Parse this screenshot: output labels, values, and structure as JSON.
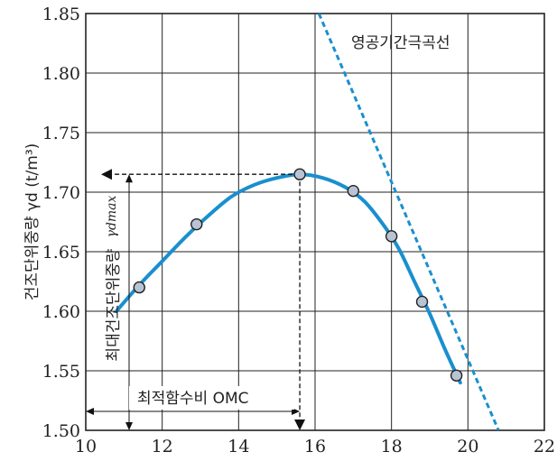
{
  "chart_data": {
    "type": "line",
    "x_ticks": [
      "10",
      "12",
      "14",
      "16",
      "18",
      "20",
      "22"
    ],
    "y_ticks": [
      "1.50",
      "1.55",
      "1.60",
      "1.65",
      "1.70",
      "1.75",
      "1.80",
      "1.85"
    ],
    "xlim": [
      10,
      22
    ],
    "ylim": [
      1.5,
      1.85
    ],
    "grid": true,
    "ylabel": "건조단위중량 γd (t/m³)",
    "series": [
      {
        "kind": "measured-points",
        "color": "#b8c3d4",
        "points": [
          {
            "x": 11.4,
            "y": 1.62
          },
          {
            "x": 12.9,
            "y": 1.673
          },
          {
            "x": 15.6,
            "y": 1.715
          },
          {
            "x": 17.0,
            "y": 1.701
          },
          {
            "x": 18.0,
            "y": 1.663
          },
          {
            "x": 18.8,
            "y": 1.608
          },
          {
            "x": 19.7,
            "y": 1.546
          }
        ]
      },
      {
        "kind": "compaction-curve",
        "color": "#1a8fce",
        "points": [
          {
            "x": 10.8,
            "y": 1.6
          },
          {
            "x": 11.4,
            "y": 1.622
          },
          {
            "x": 12.0,
            "y": 1.642
          },
          {
            "x": 12.6,
            "y": 1.662
          },
          {
            "x": 13.2,
            "y": 1.68
          },
          {
            "x": 13.8,
            "y": 1.696
          },
          {
            "x": 14.4,
            "y": 1.706
          },
          {
            "x": 15.0,
            "y": 1.712
          },
          {
            "x": 15.6,
            "y": 1.715
          },
          {
            "x": 16.2,
            "y": 1.712
          },
          {
            "x": 16.8,
            "y": 1.704
          },
          {
            "x": 17.3,
            "y": 1.692
          },
          {
            "x": 17.8,
            "y": 1.672
          },
          {
            "x": 18.2,
            "y": 1.652
          },
          {
            "x": 18.6,
            "y": 1.625
          },
          {
            "x": 19.0,
            "y": 1.598
          },
          {
            "x": 19.4,
            "y": 1.568
          },
          {
            "x": 19.8,
            "y": 1.54
          }
        ]
      },
      {
        "name": "영공기간극곡선",
        "kind": "zero-air-voids",
        "color": "#1a8fce",
        "points": [
          {
            "x": 16.1,
            "y": 1.85
          },
          {
            "x": 20.8,
            "y": 1.5
          }
        ]
      }
    ],
    "annotations": {
      "gamma_dmax_label": "γdmax",
      "max_density_label": "최대건조단위중량",
      "omc_label": "최적함수비 OMC",
      "gamma_dmax_value": 1.715,
      "omc_value": 15.6
    }
  }
}
